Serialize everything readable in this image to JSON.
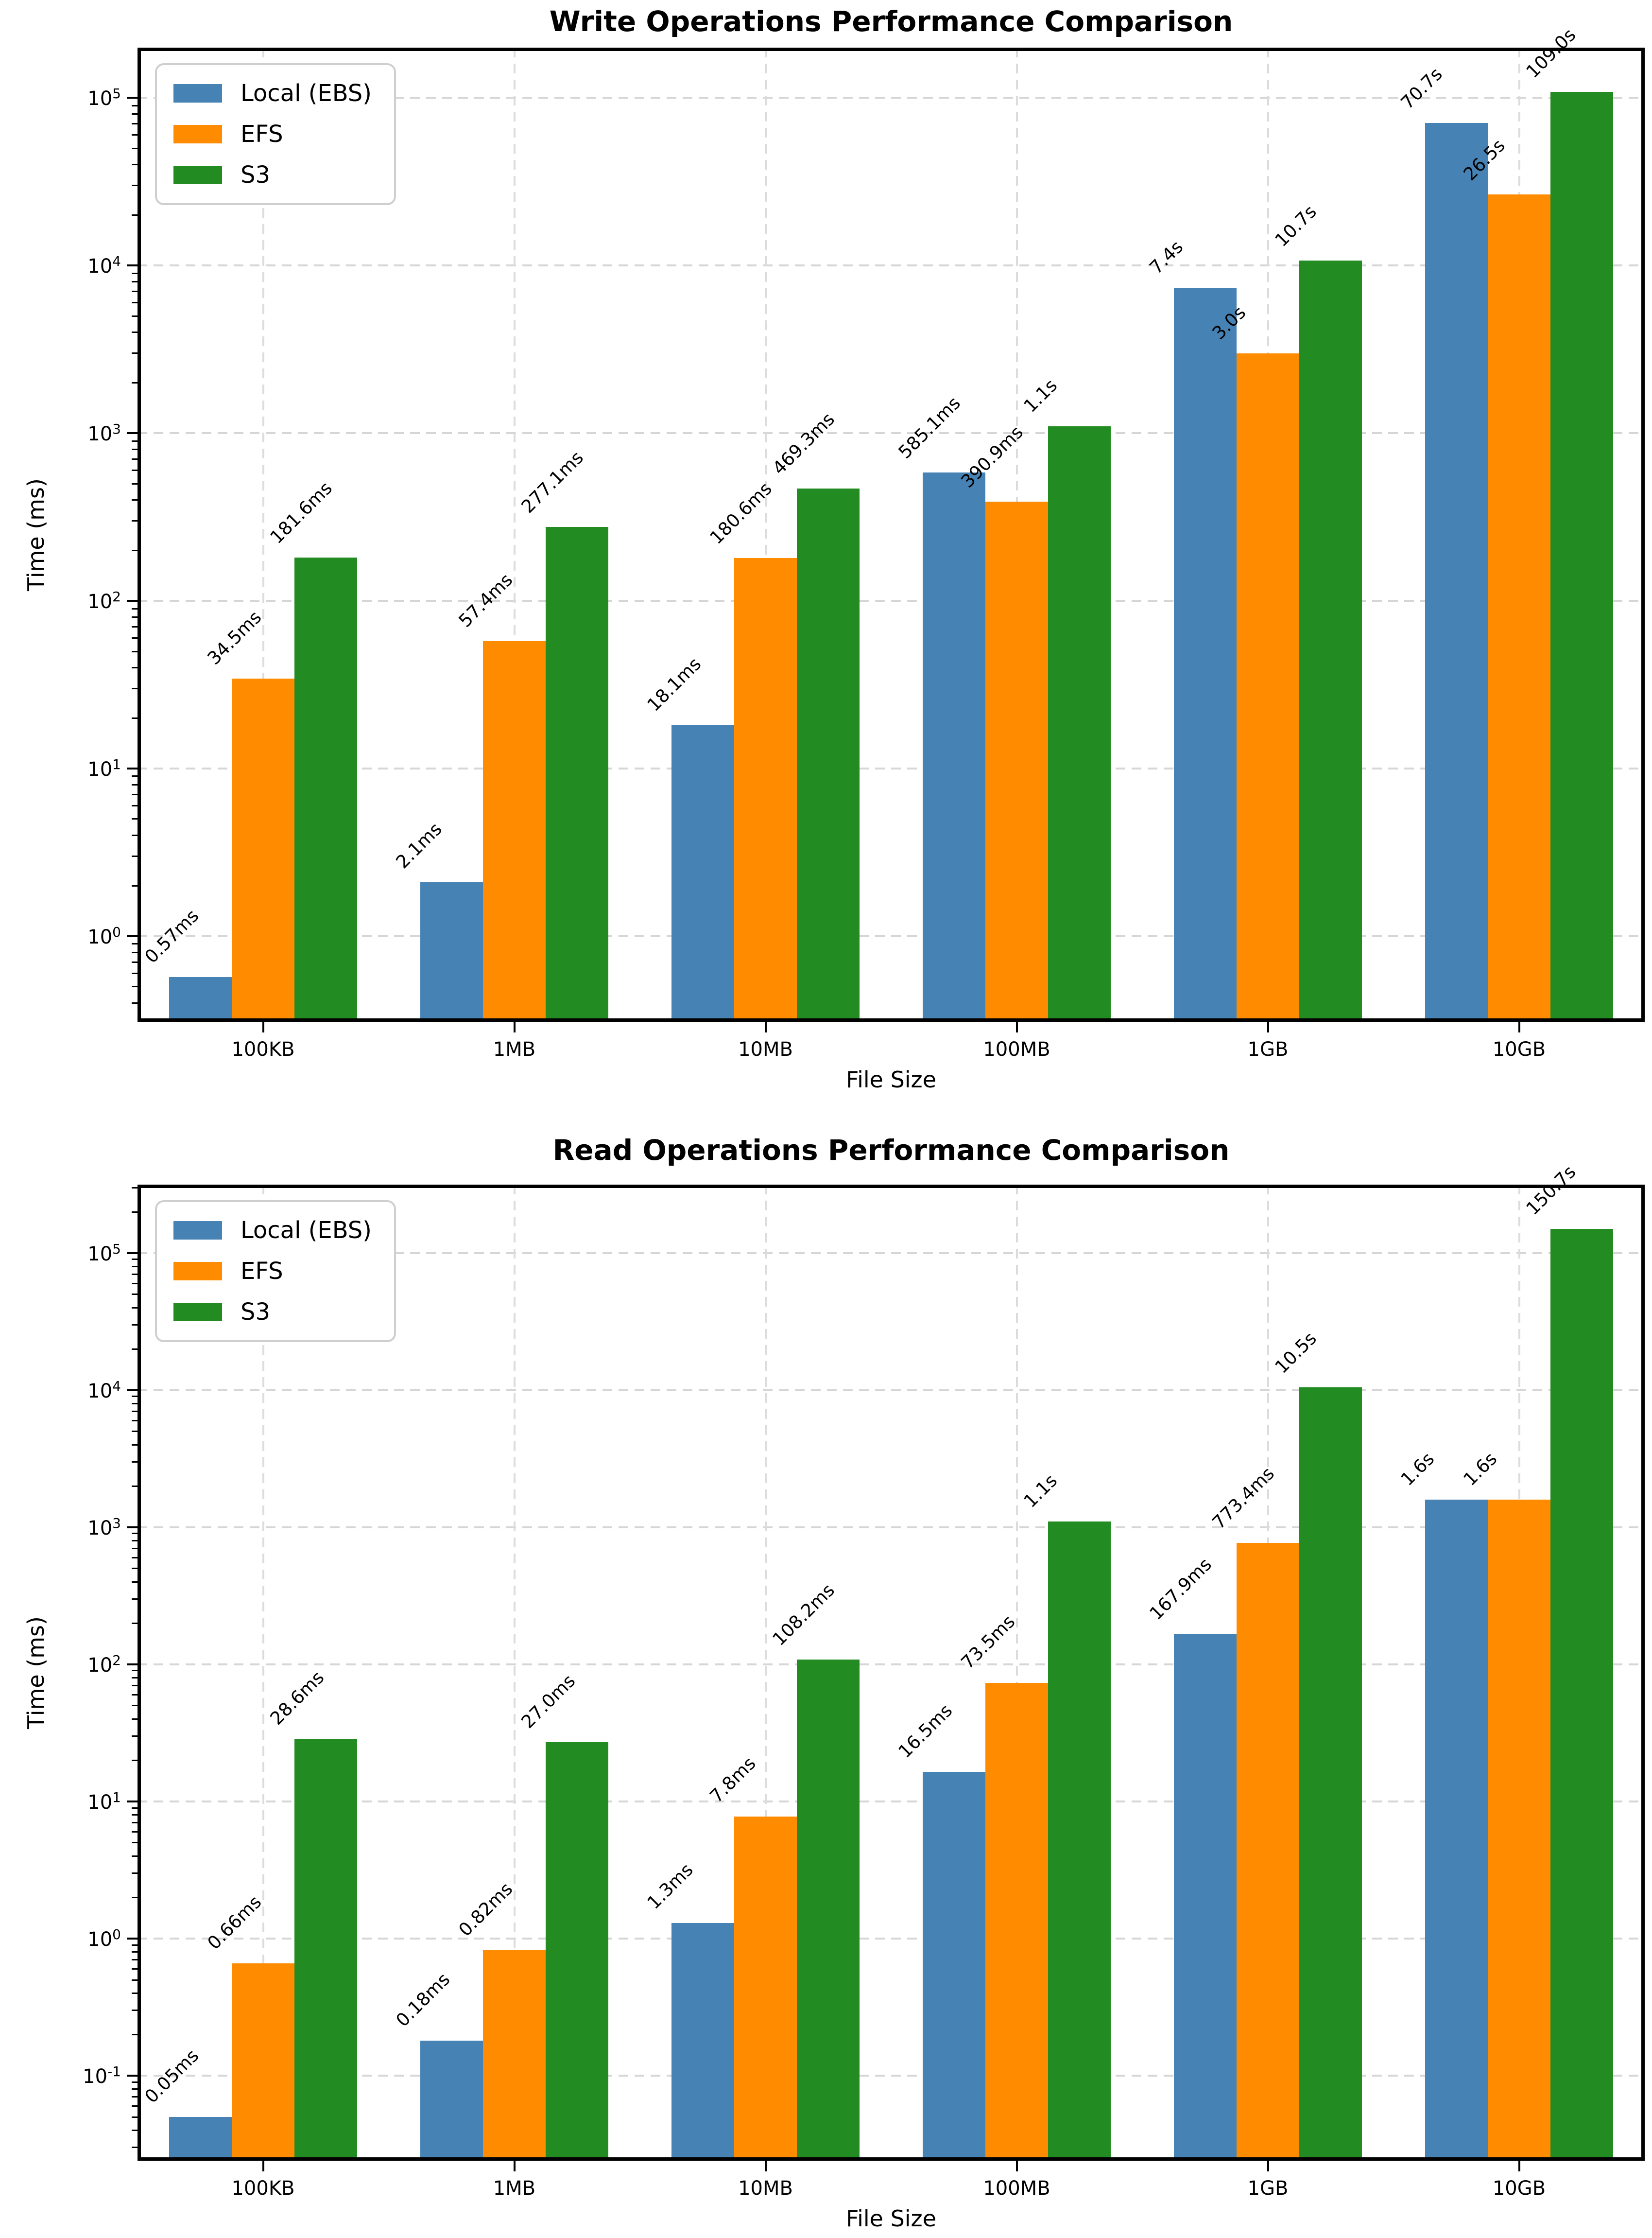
{
  "figure": {
    "background": "#ffffff"
  },
  "chart_data": [
    {
      "type": "bar",
      "title": "Write Operations Performance Comparison",
      "xlabel": "File Size",
      "ylabel": "Time (ms)",
      "yscale": "log",
      "grid": "dashed-horizontal-and-vertical",
      "legend_position": "upper-left",
      "categories": [
        "100KB",
        "1MB",
        "10MB",
        "100MB",
        "1GB",
        "10GB"
      ],
      "yticks": [
        "10^0",
        "10^1",
        "10^2",
        "10^3",
        "10^4",
        "10^5"
      ],
      "yticks_exp": [
        0,
        1,
        2,
        3,
        4,
        5
      ],
      "ylim_log10": [
        -0.51,
        5.3
      ],
      "series": [
        {
          "name": "Local (EBS)",
          "color": "#4682B4",
          "values_ms": [
            0.57,
            2.1,
            18.1,
            585.1,
            7400,
            70700
          ],
          "labels": [
            "0.57ms",
            "2.1ms",
            "18.1ms",
            "585.1ms",
            "7.4s",
            "70.7s"
          ]
        },
        {
          "name": "EFS",
          "color": "#FF8C00",
          "values_ms": [
            34.5,
            57.4,
            180.6,
            390.9,
            3000,
            26500
          ],
          "labels": [
            "34.5ms",
            "57.4ms",
            "180.6ms",
            "390.9ms",
            "3.0s",
            "26.5s"
          ]
        },
        {
          "name": "S3",
          "color": "#228B22",
          "values_ms": [
            181.6,
            277.1,
            469.3,
            1100,
            10700,
            109000
          ],
          "labels": [
            "181.6ms",
            "277.1ms",
            "469.3ms",
            "1.1s",
            "10.7s",
            "109.0s"
          ]
        }
      ]
    },
    {
      "type": "bar",
      "title": "Read Operations Performance Comparison",
      "xlabel": "File Size",
      "ylabel": "Time (ms)",
      "yscale": "log",
      "grid": "dashed-horizontal-and-vertical",
      "legend_position": "upper-left",
      "categories": [
        "100KB",
        "1MB",
        "10MB",
        "100MB",
        "1GB",
        "10GB"
      ],
      "yticks": [
        "10^-1",
        "10^0",
        "10^1",
        "10^2",
        "10^3",
        "10^4",
        "10^5"
      ],
      "yticks_exp": [
        -1,
        0,
        1,
        2,
        3,
        4,
        5
      ],
      "ylim_log10": [
        -1.62,
        5.5
      ],
      "series": [
        {
          "name": "Local (EBS)",
          "color": "#4682B4",
          "values_ms": [
            0.05,
            0.18,
            1.3,
            16.5,
            167.9,
            1600
          ],
          "labels": [
            "0.05ms",
            "0.18ms",
            "1.3ms",
            "16.5ms",
            "167.9ms",
            "1.6s"
          ]
        },
        {
          "name": "EFS",
          "color": "#FF8C00",
          "values_ms": [
            0.66,
            0.82,
            7.8,
            73.5,
            773.4,
            1600
          ],
          "labels": [
            "0.66ms",
            "0.82ms",
            "7.8ms",
            "73.5ms",
            "773.4ms",
            "1.6s"
          ]
        },
        {
          "name": "S3",
          "color": "#228B22",
          "values_ms": [
            28.6,
            27.0,
            108.2,
            1100,
            10500,
            150700
          ],
          "labels": [
            "28.6ms",
            "27.0ms",
            "108.2ms",
            "1.1s",
            "10.5s",
            "150.7s"
          ]
        }
      ]
    }
  ]
}
